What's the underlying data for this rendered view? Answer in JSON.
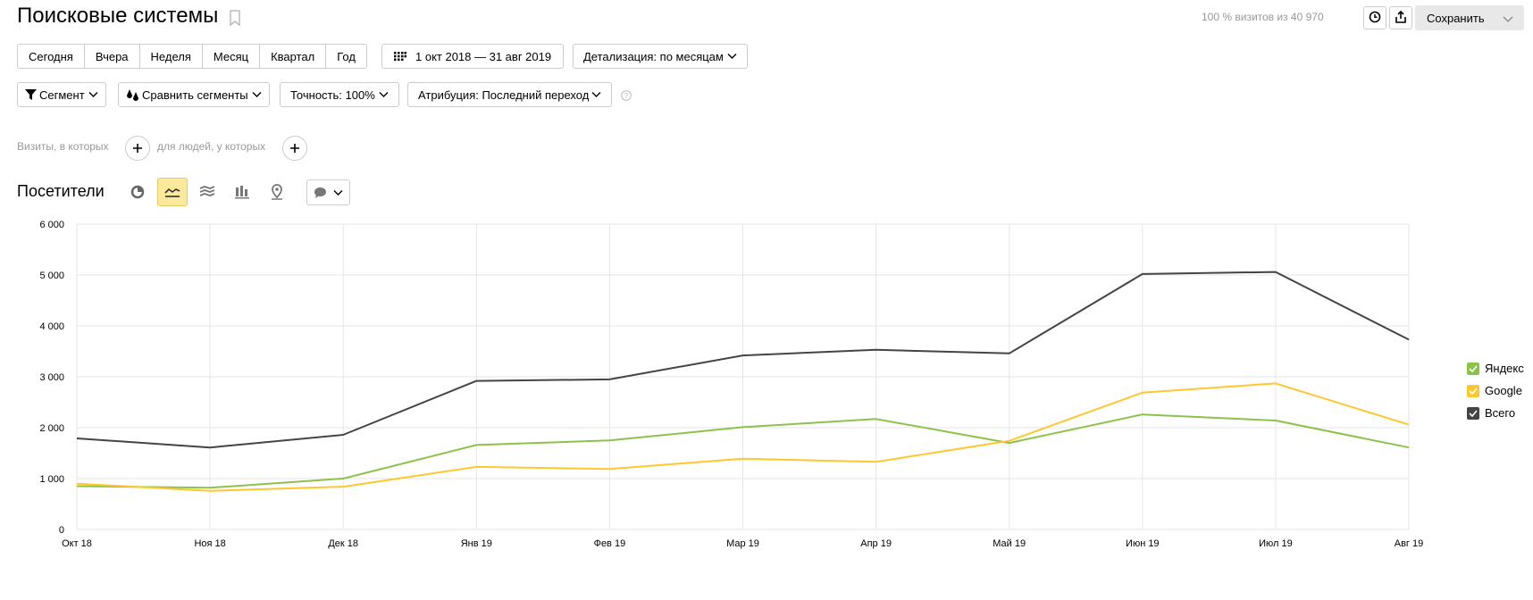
{
  "header": {
    "title": "Поисковые системы",
    "visits_info": "100 % визитов из 40 970",
    "save_label": "Сохранить"
  },
  "periods": [
    "Сегодня",
    "Вчера",
    "Неделя",
    "Месяц",
    "Квартал",
    "Год"
  ],
  "date_range": "1 окт 2018 — 31 авг 2019",
  "detail": "Детализация: по месяцам",
  "toolbar": {
    "segment": "Сегмент",
    "compare": "Сравнить сегменты",
    "accuracy": "Точность: 100%",
    "attribution": "Атрибуция: Последний переход"
  },
  "filters": {
    "visits_label": "Визиты, в которых",
    "people_label": "для людей, у которых"
  },
  "section": {
    "title": "Посетители"
  },
  "icons": {
    "bookmark": "bookmark-icon",
    "history": "clock-icon",
    "export": "export-icon",
    "calendar": "calendar-icon",
    "segment": "funnel-icon",
    "compare": "compare-icon",
    "help": "help-icon",
    "pie": "pie-chart-icon",
    "line": "line-chart-icon",
    "area": "area-chart-icon",
    "bar": "bar-chart-icon",
    "map": "map-pin-icon",
    "comment": "comment-icon"
  },
  "chart_data": {
    "type": "line",
    "categories": [
      "Окт 18",
      "Ноя 18",
      "Дек 18",
      "Янв 19",
      "Фев 19",
      "Мар 19",
      "Апр 19",
      "Май 19",
      "Июн 19",
      "Июл 19",
      "Авг 19"
    ],
    "ylim": [
      0,
      6000
    ],
    "yticks": [
      "0",
      "1 000",
      "2 000",
      "3 000",
      "4 000",
      "5 000",
      "6 000"
    ],
    "grid": true,
    "legend_position": "right",
    "series": [
      {
        "name": "Яндекс",
        "color": "#8bc34a",
        "values": [
          850,
          820,
          1000,
          1660,
          1750,
          2010,
          2170,
          1700,
          2260,
          2140,
          1610
        ]
      },
      {
        "name": "Google",
        "color": "#fdc72f",
        "values": [
          900,
          760,
          840,
          1230,
          1190,
          1390,
          1330,
          1740,
          2690,
          2870,
          2060
        ]
      },
      {
        "name": "Всего",
        "color": "#444444",
        "values": [
          1790,
          1610,
          1860,
          2920,
          2950,
          3420,
          3530,
          3460,
          5020,
          5060,
          3730
        ]
      }
    ]
  }
}
